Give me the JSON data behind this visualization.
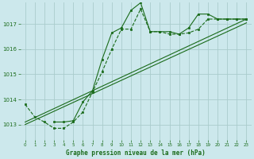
{
  "bg_color": "#cce8ec",
  "grid_color": "#aacccc",
  "line_color": "#1a6b1a",
  "xlabel": "Graphe pression niveau de la mer (hPa)",
  "ylabel_ticks": [
    1013,
    1014,
    1015,
    1016,
    1017
  ],
  "xlim": [
    -0.5,
    23.5
  ],
  "ylim": [
    1012.4,
    1017.85
  ],
  "series1_marked": {
    "x": [
      0,
      1,
      2,
      3,
      4,
      5,
      6,
      7,
      8,
      9,
      10,
      11,
      12,
      13,
      14,
      15,
      16,
      17,
      18,
      19,
      20,
      21,
      22,
      23
    ],
    "y": [
      1013.8,
      1013.3,
      1013.1,
      1012.85,
      1012.85,
      1013.1,
      1013.5,
      1014.3,
      1015.1,
      1016.0,
      1016.8,
      1016.8,
      1017.6,
      1016.7,
      1016.7,
      1016.6,
      1016.6,
      1016.65,
      1016.8,
      1017.2,
      1017.2,
      1017.2,
      1017.2,
      1017.2
    ]
  },
  "series2_smooth": {
    "x": [
      0,
      23
    ],
    "y": [
      1013.1,
      1017.2
    ]
  },
  "series3_marked2": {
    "x": [
      3,
      4,
      5,
      6,
      7,
      8,
      9,
      10,
      11,
      12,
      13,
      14,
      15,
      16,
      17,
      18,
      19,
      20,
      21,
      22,
      23
    ],
    "y": [
      1013.1,
      1013.1,
      1013.15,
      1013.9,
      1014.35,
      1015.6,
      1016.65,
      1016.85,
      1017.55,
      1017.85,
      1016.7,
      1016.7,
      1016.7,
      1016.6,
      1016.85,
      1017.4,
      1017.4,
      1017.2,
      1017.2,
      1017.2,
      1017.2
    ]
  },
  "series4_smooth2": {
    "x": [
      0,
      23
    ],
    "y": [
      1013.0,
      1017.05
    ]
  }
}
